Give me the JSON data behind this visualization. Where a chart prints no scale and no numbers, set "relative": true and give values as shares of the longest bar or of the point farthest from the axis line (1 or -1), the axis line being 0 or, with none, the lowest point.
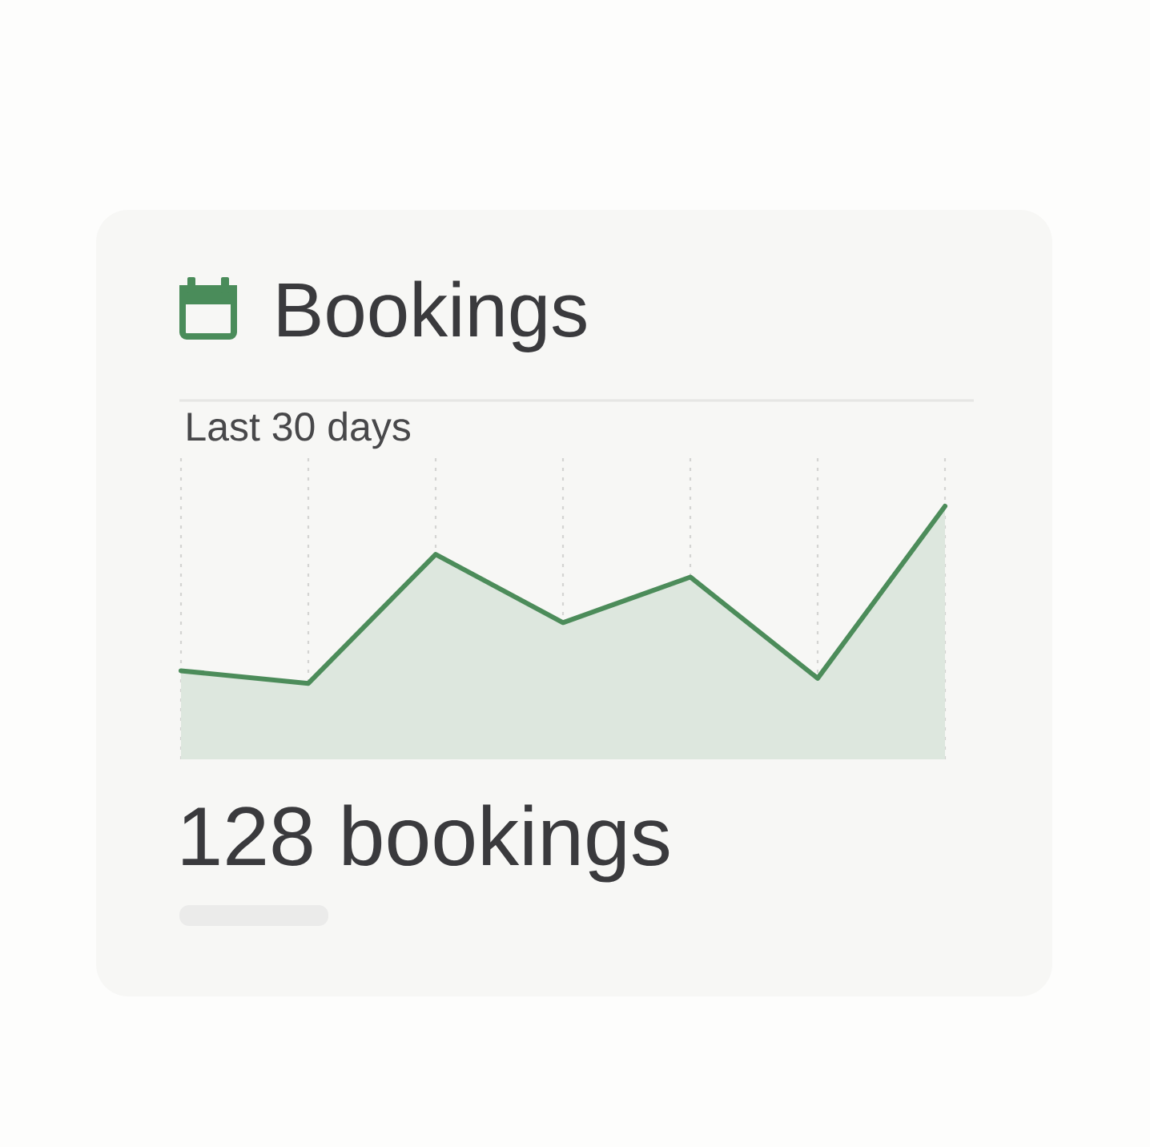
{
  "chart_data": {
    "type": "area",
    "title": "Bookings",
    "subtitle": "Last 30 days",
    "annotations": [
      "128 bookings"
    ],
    "relative": true,
    "categories": [
      null,
      null,
      null,
      null,
      null,
      null,
      null
    ],
    "values": [
      0.35,
      0.3,
      0.81,
      0.54,
      0.72,
      0.32,
      1
    ],
    "color": "#4c8c5a",
    "grid": "x"
  }
}
